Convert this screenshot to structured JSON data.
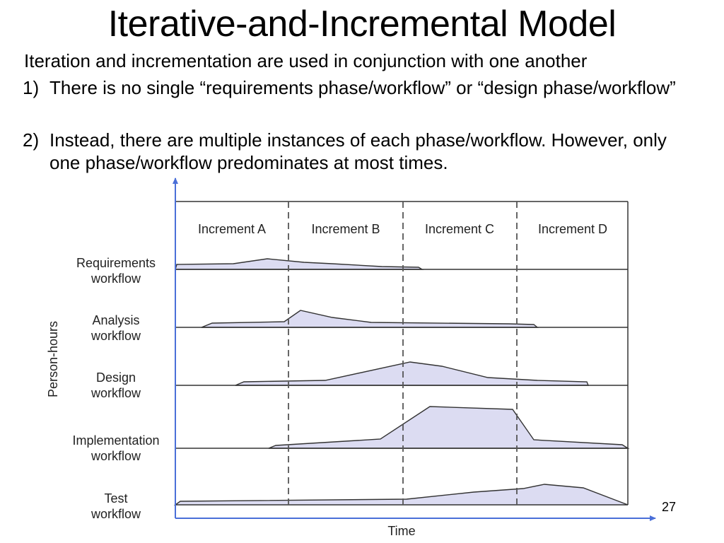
{
  "slide": {
    "title": "Iterative-and-Incremental Model",
    "intro": "Iteration and incrementation are used in conjunction with one another",
    "points": [
      {
        "num": "1)",
        "text": "There is no single “requirements phase/workflow” or “design phase/workflow”"
      },
      {
        "num": "2)",
        "text": "Instead, there are multiple instances of each phase/workflow. However, only one phase/workflow predominates at most times."
      }
    ],
    "page_number": "27"
  },
  "diagram": {
    "ylabel": "Person-hours",
    "xlabel": "Time",
    "increments": [
      "Increment A",
      "Increment B",
      "Increment C",
      "Increment D"
    ],
    "workflows": [
      {
        "line1": "Requirements",
        "line2": "workflow"
      },
      {
        "line1": "Analysis",
        "line2": "workflow"
      },
      {
        "line1": "Design",
        "line2": "workflow"
      },
      {
        "line1": "Implementation",
        "line2": "workflow"
      },
      {
        "line1": "Test",
        "line2": "workflow"
      }
    ],
    "colors": {
      "fill": "#dcdcf2",
      "stroke": "#333333",
      "axis": "#4a6fd8",
      "divider": "#555555"
    }
  }
}
